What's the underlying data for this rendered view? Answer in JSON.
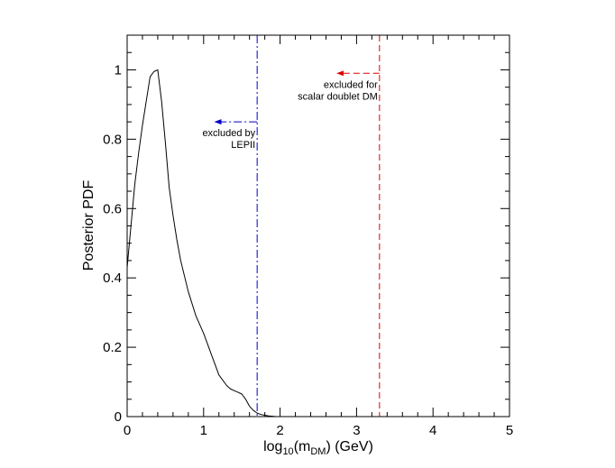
{
  "chart_data": {
    "type": "line",
    "title": "",
    "xlabel": {
      "base": "log",
      "sub1": "10",
      "mid": "(m",
      "sub2": "DM",
      "tail": ") (GeV)"
    },
    "ylabel": "Posterior PDF",
    "xlim": [
      0,
      5
    ],
    "ylim": [
      0,
      1.1
    ],
    "xticks": [
      0,
      1,
      2,
      3,
      4,
      5
    ],
    "xtick_labels": [
      "0",
      "1",
      "2",
      "3",
      "4",
      "5"
    ],
    "yticks": [
      0,
      0.2,
      0.4,
      0.6,
      0.8,
      1
    ],
    "ytick_labels": [
      "0",
      "0.2",
      "0.4",
      "0.6",
      "0.8",
      "1"
    ],
    "x_minor_step": 0.2,
    "y_minor_step": 0.05,
    "grid": false,
    "series": [
      {
        "name": "posterior",
        "color": "#000000",
        "x": [
          0.0,
          0.05,
          0.1,
          0.15,
          0.2,
          0.25,
          0.3,
          0.35,
          0.4,
          0.45,
          0.5,
          0.55,
          0.6,
          0.65,
          0.7,
          0.8,
          0.9,
          1.0,
          1.1,
          1.2,
          1.3,
          1.35,
          1.4,
          1.45,
          1.5,
          1.55,
          1.6,
          1.65,
          1.7,
          1.75,
          1.8,
          1.85,
          1.9,
          1.95,
          2.0
        ],
        "y": [
          0.43,
          0.55,
          0.67,
          0.76,
          0.84,
          0.91,
          0.98,
          0.995,
          1.0,
          0.91,
          0.79,
          0.66,
          0.58,
          0.51,
          0.45,
          0.36,
          0.29,
          0.24,
          0.18,
          0.12,
          0.09,
          0.08,
          0.075,
          0.07,
          0.065,
          0.05,
          0.03,
          0.018,
          0.01,
          0.006,
          0.004,
          0.002,
          0.001,
          0.0,
          0.0
        ]
      }
    ],
    "vlines": [
      {
        "name": "lepii-limit",
        "x": 1.7,
        "color": "#0000cc",
        "style": "dashdot",
        "arrow_y": 0.85,
        "arrow_to_x": 1.15,
        "label": [
          "excluded by",
          "LEPII"
        ]
      },
      {
        "name": "scalar-doublet-limit",
        "x": 3.3,
        "color": "#dd0000",
        "style": "dashed",
        "arrow_y": 0.99,
        "arrow_to_x": 2.75,
        "label": [
          "excluded for",
          "scalar doublet DM"
        ]
      }
    ]
  }
}
